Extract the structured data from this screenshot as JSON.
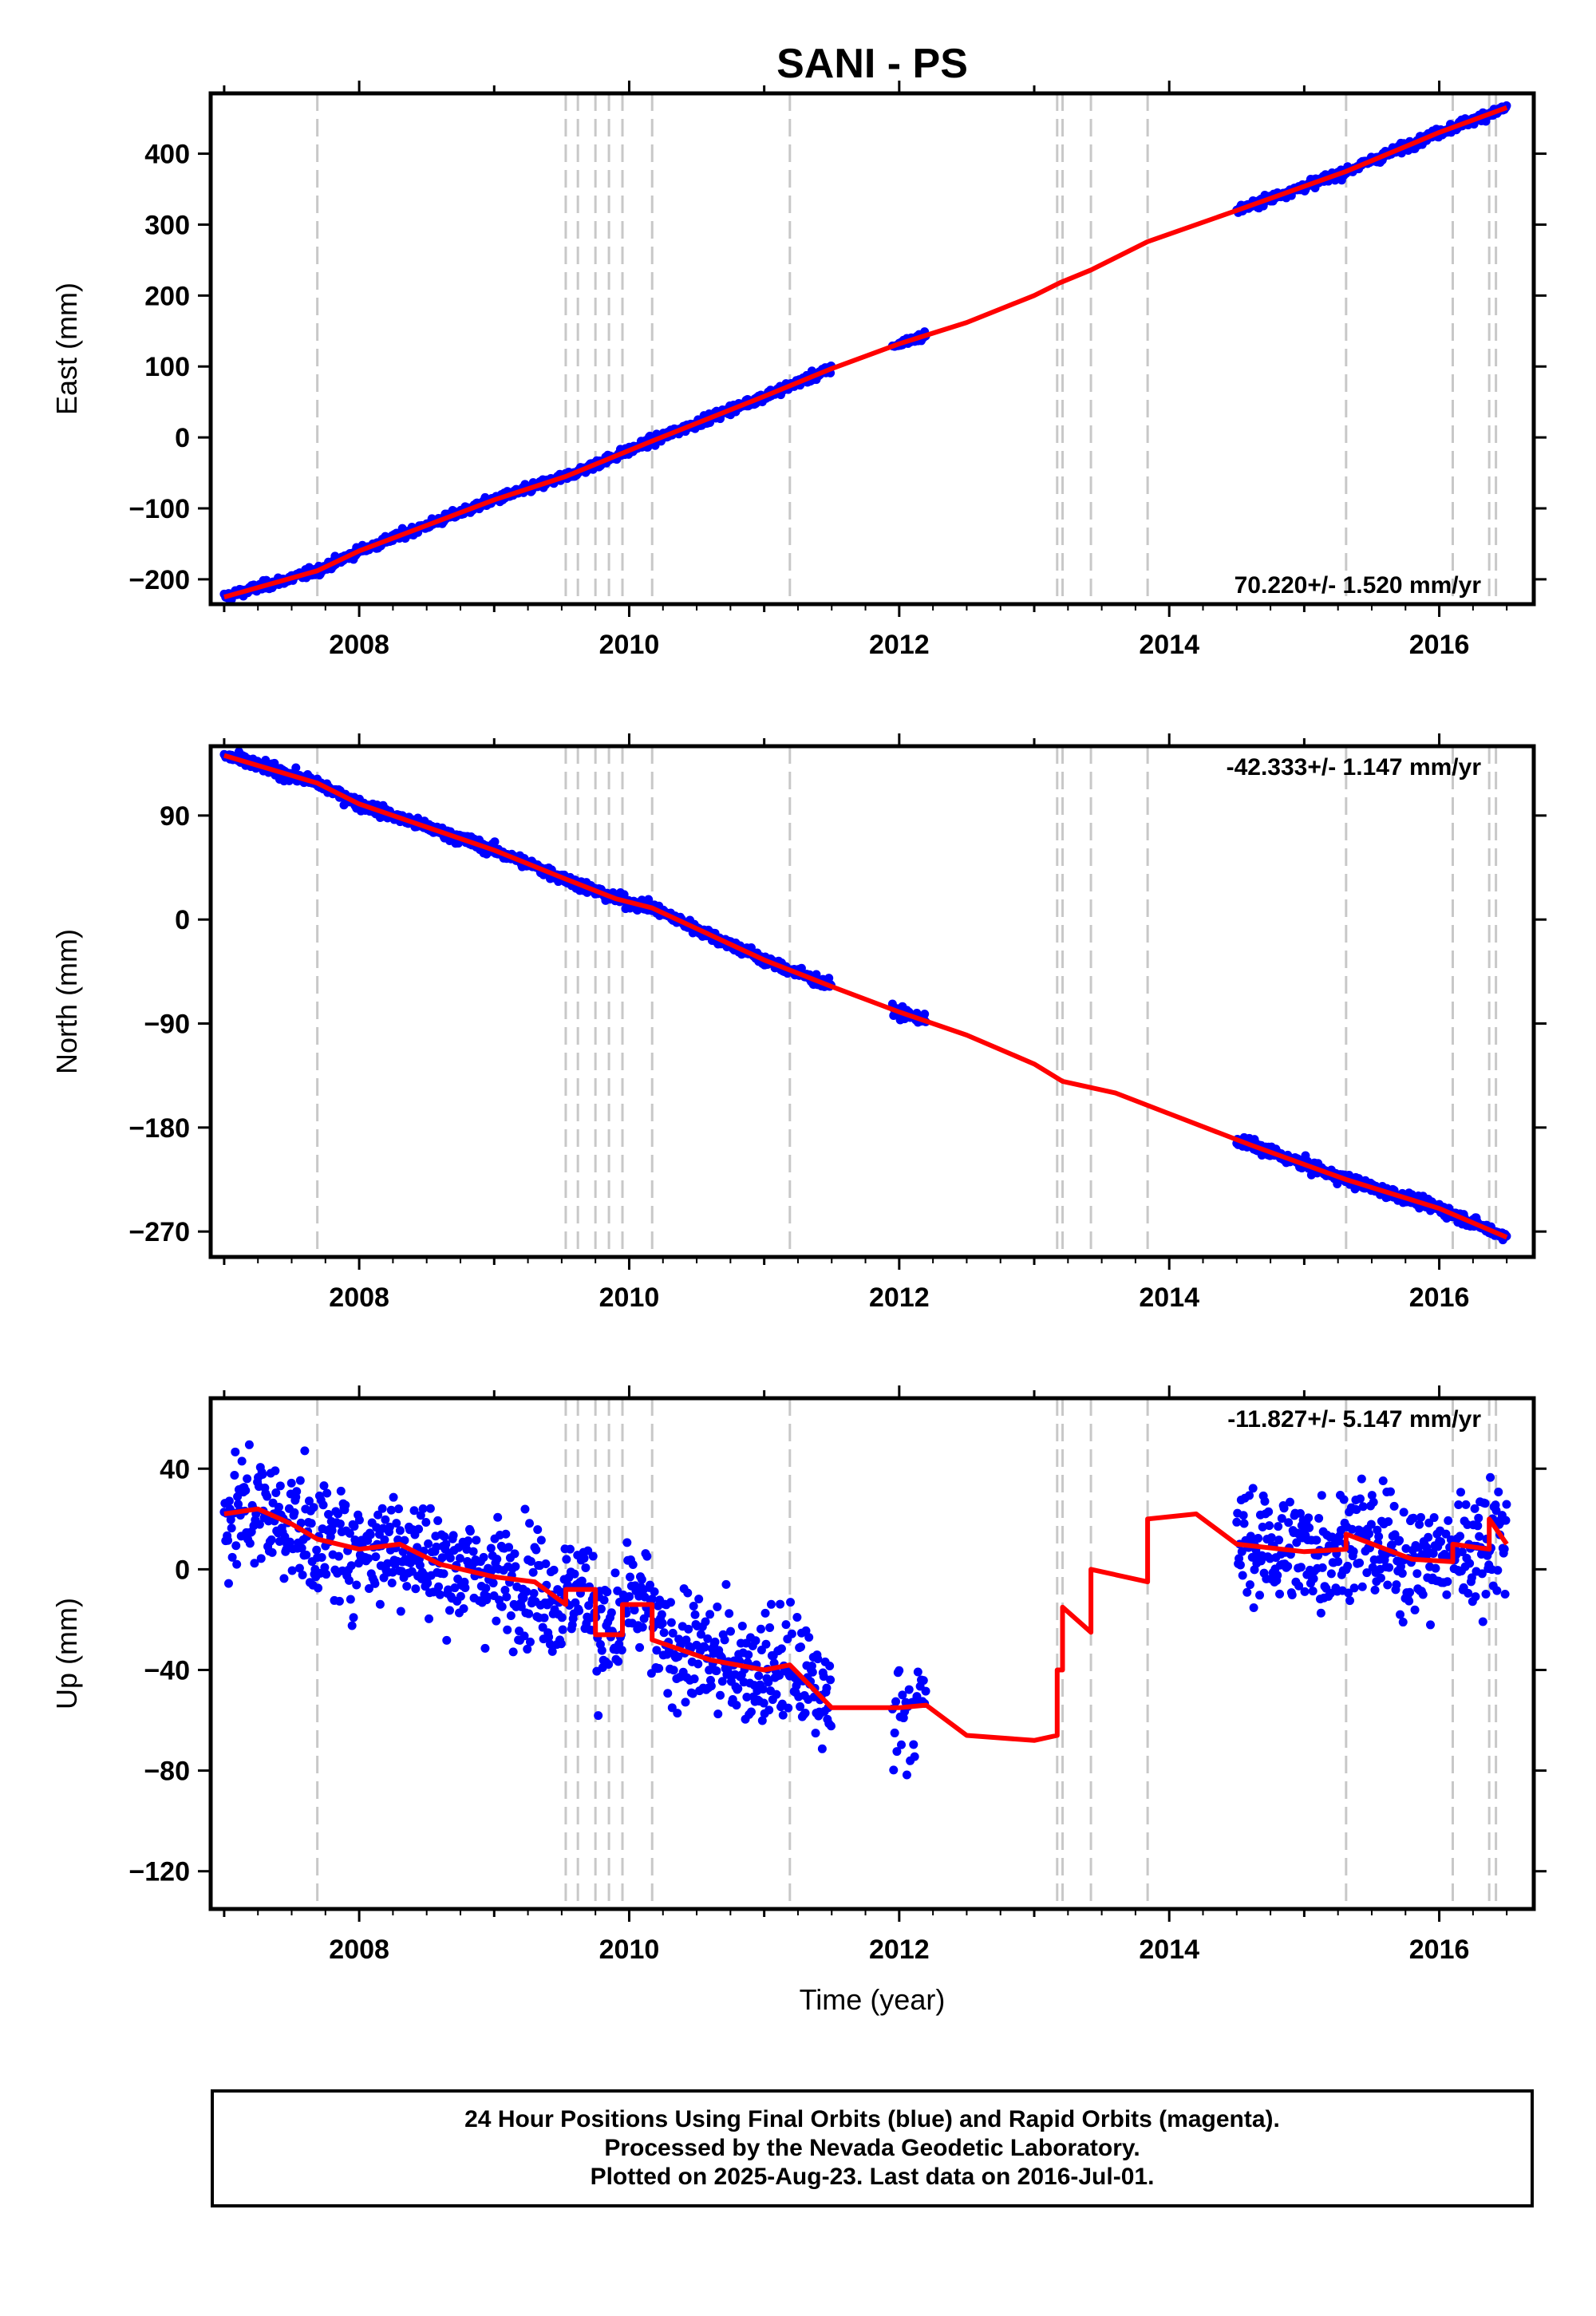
{
  "title": "SANI - PS",
  "xlabel": "Time (year)",
  "x_ticks": [
    "2008",
    "2010",
    "2012",
    "2014",
    "2016"
  ],
  "colors": {
    "points": "#0000ff",
    "model": "#ff0000",
    "event_lines": "#c8c8c8"
  },
  "footer": {
    "line1": "24 Hour Positions Using Final Orbits (blue) and Rapid Orbits (magenta).",
    "line2": "Processed by the Nevada Geodetic Laboratory.",
    "line3": "Plotted on 2025-Aug-23. Last data on 2016-Jul-01."
  },
  "chart_data": [
    {
      "type": "scatter",
      "name": "east",
      "ylabel": "East (mm)",
      "rate": "70.220+/- 1.520 mm/yr",
      "xlim": [
        2006.9,
        2016.7
      ],
      "ylim": [
        -235,
        485
      ],
      "yticks": [
        -200,
        -100,
        0,
        100,
        200,
        300,
        400
      ],
      "ytick_labels": [
        "−200",
        "−100",
        "0",
        "100",
        "200",
        "300",
        "400"
      ],
      "event_lines": [
        2007.69,
        2009.53,
        2009.62,
        2009.75,
        2009.85,
        2009.95,
        2010.17,
        2011.19,
        2013.17,
        2013.21,
        2013.42,
        2013.84,
        2015.31,
        2016.1,
        2016.37,
        2016.42
      ],
      "data_segments": [
        [
          2007.0,
          2011.5
        ],
        [
          2011.95,
          2012.2
        ],
        [
          2014.5,
          2016.5
        ]
      ],
      "scatter_noise": 4.5,
      "model_x": [
        2007.0,
        2007.69,
        2008.0,
        2009.0,
        2009.53,
        2010.17,
        2011.0,
        2011.5,
        2012.0,
        2012.5,
        2013.0,
        2013.19,
        2013.42,
        2013.84,
        2014.5,
        2015.31,
        2016.0,
        2016.5
      ],
      "model_y": [
        -225,
        -188,
        -160,
        -88,
        -55,
        -5,
        58,
        97,
        132,
        162,
        200,
        218,
        236,
        276,
        320,
        375,
        430,
        465
      ]
    },
    {
      "type": "scatter",
      "name": "north",
      "ylabel": "North (mm)",
      "rate": "-42.333+/- 1.147 mm/yr",
      "xlim": [
        2006.9,
        2016.7
      ],
      "ylim": [
        -292,
        150
      ],
      "yticks": [
        -270,
        -180,
        -90,
        0,
        90
      ],
      "ytick_labels": [
        "−270",
        "−180",
        "−90",
        "0",
        "90"
      ],
      "event_lines": [
        2007.69,
        2009.53,
        2009.62,
        2009.75,
        2009.85,
        2009.95,
        2010.17,
        2011.19,
        2013.17,
        2013.21,
        2013.42,
        2013.84,
        2015.31,
        2016.1,
        2016.37,
        2016.42
      ],
      "data_segments": [
        [
          2007.0,
          2011.5
        ],
        [
          2011.95,
          2012.2
        ],
        [
          2014.5,
          2016.5
        ]
      ],
      "scatter_noise": 3.5,
      "model_x": [
        2007.0,
        2007.69,
        2008.0,
        2008.5,
        2009.0,
        2009.53,
        2009.9,
        2010.17,
        2011.0,
        2011.5,
        2012.0,
        2012.5,
        2013.0,
        2013.21,
        2013.6,
        2014.0,
        2014.6,
        2015.31,
        2016.0,
        2016.5
      ],
      "model_y": [
        142,
        118,
        100,
        80,
        60,
        35,
        18,
        10,
        -35,
        -58,
        -80,
        -100,
        -125,
        -140,
        -150,
        -168,
        -195,
        -225,
        -250,
        -275
      ]
    },
    {
      "type": "scatter",
      "name": "up",
      "ylabel": "Up (mm)",
      "rate": "-11.827+/- 5.147 mm/yr",
      "xlim": [
        2006.9,
        2016.7
      ],
      "ylim": [
        -135,
        68
      ],
      "yticks": [
        -120,
        -80,
        -40,
        0,
        40
      ],
      "ytick_labels": [
        "−120",
        "−80",
        "−40",
        "0",
        "40"
      ],
      "event_lines": [
        2007.69,
        2009.53,
        2009.62,
        2009.75,
        2009.85,
        2009.95,
        2010.17,
        2011.19,
        2013.17,
        2013.21,
        2013.42,
        2013.84,
        2015.31,
        2016.1,
        2016.37,
        2016.42
      ],
      "data_segments": [
        [
          2007.0,
          2011.5
        ],
        [
          2011.95,
          2012.2
        ],
        [
          2014.5,
          2016.5
        ]
      ],
      "scatter_noise": 16,
      "model_x": [
        2007.0,
        2007.25,
        2007.5,
        2007.69,
        2008.0,
        2008.3,
        2008.6,
        2009.0,
        2009.3,
        2009.53,
        2009.53,
        2009.75,
        2009.75,
        2009.95,
        2009.95,
        2010.17,
        2010.17,
        2010.6,
        2011.0,
        2011.19,
        2011.5,
        2012.0,
        2012.2,
        2012.5,
        2013.0,
        2013.17,
        2013.17,
        2013.21,
        2013.21,
        2013.42,
        2013.42,
        2013.84,
        2013.84,
        2014.2,
        2014.5,
        2015.0,
        2015.31,
        2015.31,
        2015.8,
        2016.1,
        2016.1,
        2016.37,
        2016.37,
        2016.5
      ],
      "model_y": [
        22,
        24,
        18,
        12,
        8,
        10,
        2,
        -3,
        -5,
        -14,
        -8,
        -8,
        -26,
        -26,
        -14,
        -14,
        -28,
        -36,
        -40,
        -38,
        -55,
        -55,
        -54,
        -66,
        -68,
        -66,
        -40,
        -40,
        -15,
        -25,
        0,
        -5,
        20,
        22,
        10,
        7,
        8,
        14,
        4,
        3,
        10,
        8,
        20,
        10
      ]
    }
  ]
}
